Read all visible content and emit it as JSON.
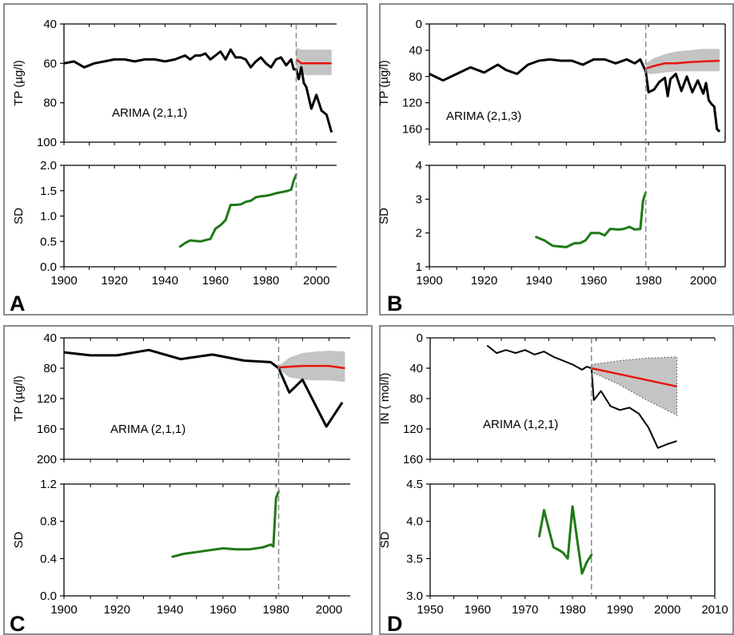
{
  "chart_data": [
    {
      "id": "A",
      "type": "line",
      "panel_label": "A",
      "model_label": "ARIMA (2,1,1)",
      "x_ticks": [
        "1900",
        "1920",
        "1940",
        "1960",
        "1980",
        "2000"
      ],
      "xlim": [
        1900,
        2008
      ],
      "cutoff_year": 1992,
      "top": {
        "ylabel": "TP (µg/l)",
        "ylim": [
          40,
          100
        ],
        "y_inverted": true,
        "y_ticks": [
          "40",
          "60",
          "80",
          "100"
        ],
        "observed": {
          "x": [
            1900,
            1904,
            1908,
            1912,
            1916,
            1920,
            1924,
            1928,
            1932,
            1936,
            1940,
            1944,
            1946,
            1948,
            1950,
            1952,
            1954,
            1956,
            1958,
            1960,
            1962,
            1964,
            1966,
            1968,
            1970,
            1972,
            1974,
            1976,
            1978,
            1980,
            1982,
            1984,
            1986,
            1988,
            1990,
            1991,
            1992,
            1993,
            1994,
            1995,
            1996,
            1998,
            2000,
            2002,
            2004,
            2006
          ],
          "y": [
            60,
            59,
            62,
            60,
            59,
            58,
            58,
            59,
            58,
            58,
            59,
            58,
            57,
            56,
            58,
            56,
            56,
            55,
            58,
            56,
            54,
            58,
            53,
            57,
            57,
            58,
            62,
            59,
            57,
            60,
            62,
            58,
            57,
            61,
            58,
            63,
            63,
            68,
            62,
            70,
            72,
            83,
            76,
            84,
            86,
            95
          ]
        },
        "forecast": {
          "x": [
            1992,
            1994,
            1996,
            1998,
            2000,
            2002,
            2004,
            2006
          ],
          "y": [
            58,
            60,
            60,
            60,
            60,
            60,
            60,
            60
          ]
        },
        "ci_upper": {
          "x": [
            1992,
            1994,
            1996,
            1998,
            2000,
            2002,
            2004,
            2006
          ],
          "y": [
            52,
            53,
            53,
            53,
            53,
            53,
            53,
            53
          ]
        },
        "ci_lower": {
          "x": [
            1992,
            1994,
            1996,
            1998,
            2000,
            2002,
            2004,
            2006
          ],
          "y": [
            62,
            65,
            66,
            66,
            66,
            66,
            66,
            66
          ]
        }
      },
      "bottom": {
        "ylabel": "SD",
        "ylim": [
          0,
          2.0
        ],
        "y_ticks": [
          "0.0",
          "0.5",
          "1.0",
          "1.5",
          "2.0"
        ],
        "sd": {
          "x": [
            1946,
            1948,
            1950,
            1954,
            1958,
            1960,
            1962,
            1964,
            1966,
            1968,
            1970,
            1972,
            1974,
            1976,
            1978,
            1980,
            1982,
            1984,
            1986,
            1988,
            1990,
            1991,
            1992
          ],
          "y": [
            0.4,
            0.47,
            0.52,
            0.5,
            0.55,
            0.75,
            0.82,
            0.92,
            1.22,
            1.22,
            1.23,
            1.28,
            1.3,
            1.37,
            1.39,
            1.4,
            1.42,
            1.45,
            1.47,
            1.49,
            1.52,
            1.7,
            1.82
          ]
        }
      }
    },
    {
      "id": "B",
      "type": "line",
      "panel_label": "B",
      "model_label": "ARIMA (2,1,3)",
      "x_ticks": [
        "1900",
        "1920",
        "1940",
        "1960",
        "1980",
        "2000"
      ],
      "xlim": [
        1900,
        2008
      ],
      "cutoff_year": 1979,
      "top": {
        "ylabel": "TP (µg/l)",
        "ylim": [
          0,
          180
        ],
        "y_inverted": true,
        "y_ticks": [
          "0",
          "40",
          "80",
          "120",
          "160"
        ],
        "observed": {
          "x": [
            1900,
            1905,
            1910,
            1915,
            1920,
            1925,
            1928,
            1932,
            1936,
            1940,
            1944,
            1948,
            1952,
            1956,
            1960,
            1964,
            1968,
            1972,
            1975,
            1977,
            1979,
            1980,
            1982,
            1984,
            1986,
            1987,
            1988,
            1990,
            1992,
            1994,
            1996,
            1998,
            2000,
            2001,
            2002,
            2003,
            2004,
            2005,
            2006
          ],
          "y": [
            76,
            86,
            76,
            66,
            74,
            62,
            70,
            76,
            62,
            56,
            54,
            56,
            56,
            62,
            54,
            54,
            60,
            54,
            60,
            54,
            72,
            104,
            100,
            88,
            82,
            110,
            84,
            76,
            102,
            80,
            104,
            86,
            106,
            90,
            116,
            122,
            126,
            160,
            164
          ]
        },
        "forecast": {
          "x": [
            1979,
            1982,
            1986,
            1990,
            1995,
            2000,
            2006
          ],
          "y": [
            68,
            64,
            60,
            60,
            58,
            57,
            56
          ]
        },
        "ci_upper": {
          "x": [
            1979,
            1982,
            1986,
            1990,
            1995,
            2000,
            2006
          ],
          "y": [
            60,
            52,
            46,
            42,
            40,
            38,
            38
          ]
        },
        "ci_lower": {
          "x": [
            1979,
            1982,
            1986,
            1990,
            1995,
            2000,
            2006
          ],
          "y": [
            76,
            76,
            74,
            72,
            72,
            72,
            72
          ]
        }
      },
      "bottom": {
        "ylabel": "SD",
        "ylim": [
          1,
          4
        ],
        "y_ticks": [
          "1",
          "2",
          "3",
          "4"
        ],
        "sd": {
          "x": [
            1939,
            1942,
            1945,
            1950,
            1953,
            1955,
            1957,
            1959,
            1962,
            1964,
            1966,
            1969,
            1971,
            1973,
            1975,
            1977,
            1978,
            1979
          ],
          "y": [
            1.88,
            1.78,
            1.62,
            1.58,
            1.7,
            1.7,
            1.78,
            2.0,
            2.0,
            1.93,
            2.12,
            2.1,
            2.12,
            2.18,
            2.1,
            2.12,
            2.95,
            3.2
          ]
        }
      }
    },
    {
      "id": "C",
      "type": "line",
      "panel_label": "C",
      "model_label": "ARIMA (2,1,1)",
      "x_ticks": [
        "1900",
        "1920",
        "1940",
        "1960",
        "1980",
        "2000"
      ],
      "xlim": [
        1900,
        2008
      ],
      "cutoff_year": 1981,
      "top": {
        "ylabel": "TP (µg/l)",
        "ylim": [
          40,
          200
        ],
        "y_inverted": true,
        "y_ticks": [
          "40",
          "80",
          "120",
          "160",
          "200"
        ],
        "observed": {
          "x": [
            1900,
            1910,
            1920,
            1932,
            1944,
            1956,
            1968,
            1978,
            1981,
            1985,
            1990,
            1999,
            2005
          ],
          "y": [
            59,
            63,
            63,
            56,
            68,
            62,
            70,
            72,
            80,
            112,
            95,
            157,
            125
          ]
        },
        "forecast": {
          "x": [
            1981,
            1985,
            1990,
            1995,
            2000,
            2006
          ],
          "y": [
            79,
            78,
            77,
            77,
            77,
            80
          ]
        },
        "ci_upper": {
          "x": [
            1981,
            1985,
            1990,
            1995,
            2000,
            2006
          ],
          "y": [
            77,
            66,
            60,
            58,
            57,
            58
          ]
        },
        "ci_lower": {
          "x": [
            1981,
            1985,
            1990,
            1995,
            2000,
            2006
          ],
          "y": [
            81,
            92,
            95,
            96,
            96,
            98
          ]
        }
      },
      "bottom": {
        "ylabel": "SD",
        "ylim": [
          0.0,
          1.2
        ],
        "y_ticks": [
          "0.0",
          "0.4",
          "0.8",
          "1.2"
        ],
        "sd": {
          "x": [
            1941,
            1945,
            1950,
            1955,
            1960,
            1965,
            1970,
            1975,
            1978,
            1979,
            1980,
            1981
          ],
          "y": [
            0.42,
            0.45,
            0.47,
            0.49,
            0.51,
            0.5,
            0.5,
            0.52,
            0.55,
            0.53,
            1.05,
            1.12
          ]
        }
      }
    },
    {
      "id": "D",
      "type": "line",
      "panel_label": "D",
      "model_label": "ARIMA (1,2,1)",
      "x_ticks": [
        "1950",
        "1960",
        "1970",
        "1980",
        "1990",
        "2000",
        "2010"
      ],
      "xlim": [
        1950,
        2010
      ],
      "cutoff_year": 1984,
      "top": {
        "ylabel": "IN ( mol/l)",
        "ylim": [
          0,
          160
        ],
        "y_inverted": true,
        "y_ticks": [
          "0",
          "40",
          "80",
          "120",
          "160"
        ],
        "observed": {
          "x": [
            1962,
            1964,
            1966,
            1968,
            1970,
            1972,
            1974,
            1976,
            1978,
            1980,
            1982,
            1983,
            1984,
            1984.5,
            1986,
            1988,
            1990,
            1992,
            1994,
            1996,
            1998,
            2000,
            2002
          ],
          "y": [
            10,
            20,
            16,
            20,
            16,
            22,
            18,
            25,
            30,
            35,
            42,
            38,
            40,
            82,
            70,
            90,
            95,
            92,
            100,
            118,
            145,
            140,
            136
          ]
        },
        "forecast": {
          "x": [
            1984,
            2002
          ],
          "y": [
            40,
            64
          ]
        },
        "ci_upper": {
          "x": [
            1984,
            1990,
            1995,
            2002
          ],
          "y": [
            35,
            30,
            27,
            25
          ]
        },
        "ci_lower": {
          "x": [
            1984,
            1990,
            1995,
            2002
          ],
          "y": [
            45,
            62,
            80,
            102
          ]
        }
      },
      "bottom": {
        "ylabel": "SD",
        "ylim": [
          3.0,
          4.5
        ],
        "y_ticks": [
          "3.0",
          "3.5",
          "4.0",
          "4.5"
        ],
        "sd": {
          "x": [
            1973,
            1974,
            1975,
            1976,
            1977,
            1978,
            1979,
            1980,
            1981,
            1982,
            1983,
            1984
          ],
          "y": [
            3.8,
            4.15,
            3.9,
            3.65,
            3.62,
            3.58,
            3.5,
            4.2,
            3.75,
            3.3,
            3.45,
            3.55
          ]
        }
      }
    }
  ]
}
